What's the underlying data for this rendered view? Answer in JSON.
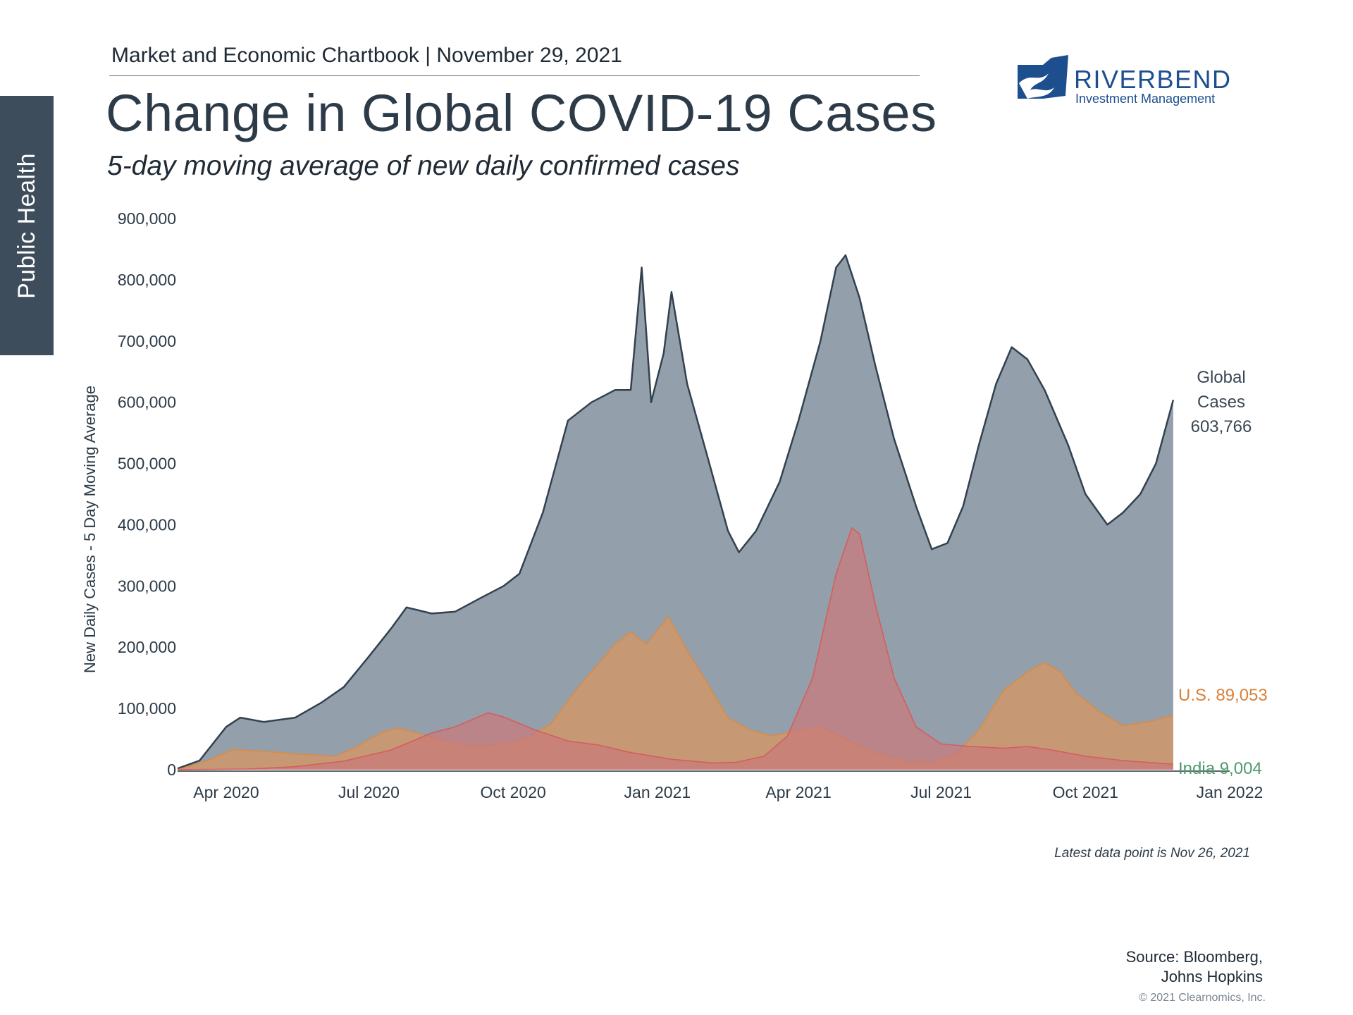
{
  "header": {
    "publication": "Market and Economic Chartbook | November 29, 2021",
    "side_tab": "Public Health",
    "logo_name": "RIVERBEND",
    "logo_subtitle": "Investment Management"
  },
  "chart_data": {
    "type": "area",
    "title": "Change in Global COVID-19 Cases",
    "subtitle": "5-day moving average of new daily confirmed cases",
    "ylabel": "New Daily Cases - 5 Day Moving Average",
    "xlabel": "",
    "ylim": [
      0,
      900000
    ],
    "yticks": [
      0,
      100000,
      200000,
      300000,
      400000,
      500000,
      600000,
      700000,
      800000,
      900000
    ],
    "ytick_labels": [
      "0",
      "100,000",
      "200,000",
      "300,000",
      "400,000",
      "500,000",
      "600,000",
      "700,000",
      "800,000",
      "900,000"
    ],
    "xlim": [
      "2020-03-01",
      "2022-01-01"
    ],
    "xticks": [
      "2020-04-01",
      "2020-07-01",
      "2020-10-01",
      "2021-01-01",
      "2021-04-01",
      "2021-07-01",
      "2021-10-01",
      "2022-01-01"
    ],
    "xtick_labels": [
      "Apr 2020",
      "Jul 2020",
      "Oct 2020",
      "Jan 2021",
      "Apr 2021",
      "Jul 2021",
      "Oct 2021",
      "Jan 2022"
    ],
    "grid": false,
    "legend": "direct labels at right end of series",
    "series": [
      {
        "name": "Global Cases",
        "label_lines": [
          "Global",
          "Cases",
          "603,766"
        ],
        "color": "#8d9ba8",
        "line_color": "#33414f",
        "points": [
          [
            "2020-03-01",
            2000
          ],
          [
            "2020-03-15",
            15000
          ],
          [
            "2020-04-01",
            70000
          ],
          [
            "2020-04-10",
            85000
          ],
          [
            "2020-04-25",
            78000
          ],
          [
            "2020-05-15",
            85000
          ],
          [
            "2020-06-01",
            110000
          ],
          [
            "2020-06-15",
            135000
          ],
          [
            "2020-07-01",
            185000
          ],
          [
            "2020-07-15",
            230000
          ],
          [
            "2020-07-25",
            265000
          ],
          [
            "2020-08-10",
            255000
          ],
          [
            "2020-08-25",
            258000
          ],
          [
            "2020-09-10",
            280000
          ],
          [
            "2020-09-25",
            300000
          ],
          [
            "2020-10-05",
            320000
          ],
          [
            "2020-10-20",
            420000
          ],
          [
            "2020-11-05",
            570000
          ],
          [
            "2020-11-20",
            600000
          ],
          [
            "2020-12-05",
            620000
          ],
          [
            "2020-12-15",
            620000
          ],
          [
            "2020-12-22",
            820000
          ],
          [
            "2020-12-28",
            600000
          ],
          [
            "2021-01-05",
            680000
          ],
          [
            "2021-01-10",
            780000
          ],
          [
            "2021-01-20",
            630000
          ],
          [
            "2021-02-01",
            520000
          ],
          [
            "2021-02-15",
            390000
          ],
          [
            "2021-02-22",
            355000
          ],
          [
            "2021-03-05",
            390000
          ],
          [
            "2021-03-20",
            470000
          ],
          [
            "2021-04-01",
            570000
          ],
          [
            "2021-04-15",
            700000
          ],
          [
            "2021-04-25",
            820000
          ],
          [
            "2021-05-01",
            840000
          ],
          [
            "2021-05-10",
            770000
          ],
          [
            "2021-05-20",
            660000
          ],
          [
            "2021-06-01",
            540000
          ],
          [
            "2021-06-15",
            430000
          ],
          [
            "2021-06-25",
            360000
          ],
          [
            "2021-07-05",
            370000
          ],
          [
            "2021-07-15",
            430000
          ],
          [
            "2021-07-25",
            530000
          ],
          [
            "2021-08-05",
            630000
          ],
          [
            "2021-08-15",
            690000
          ],
          [
            "2021-08-25",
            670000
          ],
          [
            "2021-09-05",
            620000
          ],
          [
            "2021-09-20",
            530000
          ],
          [
            "2021-10-01",
            450000
          ],
          [
            "2021-10-15",
            400000
          ],
          [
            "2021-10-25",
            420000
          ],
          [
            "2021-11-05",
            450000
          ],
          [
            "2021-11-15",
            500000
          ],
          [
            "2021-11-26",
            603766
          ]
        ]
      },
      {
        "name": "U.S.",
        "label": "U.S. 89,053",
        "color": "#d9965e",
        "line_color": "#d98a45",
        "label_color": "#d9803a",
        "points": [
          [
            "2020-03-01",
            0
          ],
          [
            "2020-03-20",
            15000
          ],
          [
            "2020-04-05",
            33000
          ],
          [
            "2020-04-25",
            30000
          ],
          [
            "2020-05-15",
            26000
          ],
          [
            "2020-06-10",
            22000
          ],
          [
            "2020-06-25",
            40000
          ],
          [
            "2020-07-10",
            62000
          ],
          [
            "2020-07-20",
            68000
          ],
          [
            "2020-08-05",
            57000
          ],
          [
            "2020-08-25",
            43000
          ],
          [
            "2020-09-10",
            37000
          ],
          [
            "2020-09-25",
            43000
          ],
          [
            "2020-10-10",
            52000
          ],
          [
            "2020-10-25",
            75000
          ],
          [
            "2020-11-10",
            130000
          ],
          [
            "2020-11-25",
            175000
          ],
          [
            "2020-12-05",
            205000
          ],
          [
            "2020-12-15",
            225000
          ],
          [
            "2020-12-25",
            205000
          ],
          [
            "2021-01-08",
            250000
          ],
          [
            "2021-01-20",
            195000
          ],
          [
            "2021-02-01",
            145000
          ],
          [
            "2021-02-15",
            85000
          ],
          [
            "2021-03-01",
            65000
          ],
          [
            "2021-03-15",
            55000
          ],
          [
            "2021-04-01",
            65000
          ],
          [
            "2021-04-15",
            70000
          ],
          [
            "2021-05-01",
            50000
          ],
          [
            "2021-05-20",
            28000
          ],
          [
            "2021-06-10",
            13000
          ],
          [
            "2021-06-25",
            12000
          ],
          [
            "2021-07-10",
            25000
          ],
          [
            "2021-07-25",
            65000
          ],
          [
            "2021-08-10",
            130000
          ],
          [
            "2021-08-25",
            160000
          ],
          [
            "2021-09-05",
            175000
          ],
          [
            "2021-09-15",
            160000
          ],
          [
            "2021-09-25",
            125000
          ],
          [
            "2021-10-10",
            95000
          ],
          [
            "2021-10-25",
            72000
          ],
          [
            "2021-11-10",
            78000
          ],
          [
            "2021-11-26",
            89053
          ]
        ]
      },
      {
        "name": "India",
        "label": "India 9,004",
        "color": "#c9787a",
        "line_color": "#d45e5e",
        "label_color": "#4f9a6a",
        "points": [
          [
            "2020-03-01",
            0
          ],
          [
            "2020-04-15",
            1000
          ],
          [
            "2020-05-15",
            5000
          ],
          [
            "2020-06-15",
            14000
          ],
          [
            "2020-07-15",
            32000
          ],
          [
            "2020-08-10",
            60000
          ],
          [
            "2020-08-25",
            70000
          ],
          [
            "2020-09-15",
            93000
          ],
          [
            "2020-09-25",
            86000
          ],
          [
            "2020-10-15",
            65000
          ],
          [
            "2020-11-05",
            47000
          ],
          [
            "2020-11-25",
            40000
          ],
          [
            "2020-12-15",
            28000
          ],
          [
            "2021-01-10",
            17000
          ],
          [
            "2021-02-05",
            11000
          ],
          [
            "2021-02-20",
            12000
          ],
          [
            "2021-03-10",
            22000
          ],
          [
            "2021-03-25",
            55000
          ],
          [
            "2021-04-10",
            150000
          ],
          [
            "2021-04-25",
            320000
          ],
          [
            "2021-05-05",
            395000
          ],
          [
            "2021-05-10",
            385000
          ],
          [
            "2021-05-20",
            270000
          ],
          [
            "2021-06-01",
            150000
          ],
          [
            "2021-06-15",
            70000
          ],
          [
            "2021-07-01",
            42000
          ],
          [
            "2021-07-20",
            38000
          ],
          [
            "2021-08-10",
            35000
          ],
          [
            "2021-08-25",
            38000
          ],
          [
            "2021-09-10",
            32000
          ],
          [
            "2021-10-01",
            22000
          ],
          [
            "2021-10-25",
            15000
          ],
          [
            "2021-11-26",
            9004
          ]
        ]
      }
    ]
  },
  "footer": {
    "note": "Latest data point is Nov 26, 2021",
    "source_line1": "Source: Bloomberg,",
    "source_line2": "Johns Hopkins",
    "copyright": "© 2021 Clearnomics, Inc."
  }
}
